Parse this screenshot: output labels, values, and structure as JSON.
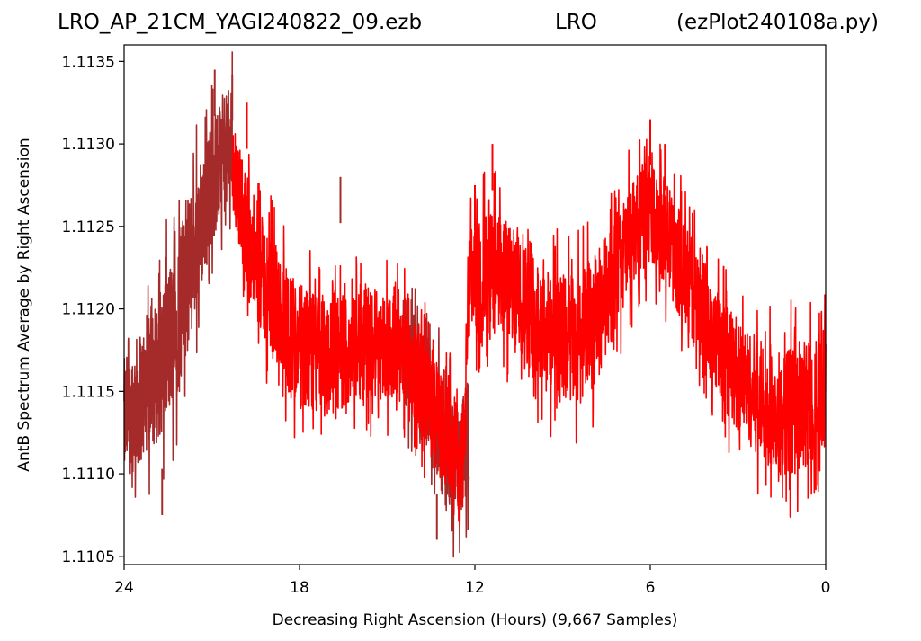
{
  "header": {
    "file_name": "LRO_AP_21CM_YAGI240822_09.ezb",
    "site": "LRO",
    "script": "(ezPlot240108a.py)"
  },
  "chart_data": {
    "type": "line",
    "xlabel": "Decreasing Right Ascension (Hours) (9,667 Samples)",
    "ylabel": "AntB Spectrum Average by Right Ascension",
    "xlim": [
      24,
      0
    ],
    "ylim": [
      1.11045,
      1.1136
    ],
    "x_ticks": [
      {
        "value": 24,
        "label": "24"
      },
      {
        "value": 18,
        "label": "18"
      },
      {
        "value": 12,
        "label": "12"
      },
      {
        "value": 6,
        "label": "6"
      },
      {
        "value": 0,
        "label": "0"
      }
    ],
    "y_ticks": [
      {
        "value": 1.1105,
        "label": "1.1105"
      },
      {
        "value": 1.111,
        "label": "1.1110"
      },
      {
        "value": 1.1115,
        "label": "1.1115"
      },
      {
        "value": 1.112,
        "label": "1.1120"
      },
      {
        "value": 1.1125,
        "label": "1.1125"
      },
      {
        "value": 1.113,
        "label": "1.1130"
      },
      {
        "value": 1.1135,
        "label": "1.1135"
      }
    ],
    "grid": false,
    "colors": {
      "dark_series": "#a52a2a",
      "bright_series": "#ff0000"
    },
    "series": [
      {
        "color": "#a52a2a",
        "envelope": {
          "x": [
            24.0,
            23.5,
            23.0,
            22.5,
            22.0,
            21.5,
            21.0,
            20.5,
            20.3
          ],
          "low": [
            1.11095,
            1.11105,
            1.11115,
            1.1113,
            1.1116,
            1.112,
            1.1124,
            1.1126,
            1.1127
          ],
          "high": [
            1.1117,
            1.11185,
            1.112,
            1.11225,
            1.11255,
            1.11285,
            1.11315,
            1.1133,
            1.11335
          ]
        }
      },
      {
        "color": "#a52a2a",
        "envelope": {
          "x": [
            14.5,
            14.0,
            13.5,
            13.0,
            12.5,
            12.2
          ],
          "low": [
            1.11145,
            1.1113,
            1.1111,
            1.1108,
            1.1107,
            1.1109
          ],
          "high": [
            1.11215,
            1.11195,
            1.11175,
            1.11155,
            1.1114,
            1.1116
          ]
        }
      },
      {
        "color": "#ff0000",
        "envelope": {
          "x": [
            20.3,
            20.0,
            19.5,
            19.0,
            18.5,
            18.0,
            17.5,
            17.0,
            16.5,
            16.0,
            15.5,
            15.0,
            14.5,
            14.0,
            13.5,
            13.0,
            12.6,
            12.4,
            12.2,
            12.0,
            11.5,
            11.0,
            10.5,
            10.0,
            9.5,
            9.0,
            8.5,
            8.0,
            7.5,
            7.0,
            6.5,
            6.0,
            5.5,
            5.0,
            4.5,
            4.0,
            3.5,
            3.0,
            2.5,
            2.0,
            1.5,
            1.0,
            0.5,
            0.0
          ],
          "low": [
            1.1126,
            1.1123,
            1.11195,
            1.1117,
            1.1115,
            1.1114,
            1.11135,
            1.11135,
            1.1114,
            1.11145,
            1.11145,
            1.11145,
            1.11145,
            1.1113,
            1.1111,
            1.1109,
            1.1108,
            1.11075,
            1.1117,
            1.11185,
            1.11185,
            1.1118,
            1.11175,
            1.1116,
            1.1115,
            1.1114,
            1.1114,
            1.1115,
            1.1117,
            1.11195,
            1.11215,
            1.1123,
            1.11215,
            1.11195,
            1.11175,
            1.1116,
            1.1114,
            1.11125,
            1.11115,
            1.11105,
            1.111,
            1.111,
            1.11105,
            1.1111
          ],
          "high": [
            1.1132,
            1.11295,
            1.11265,
            1.11245,
            1.1123,
            1.11215,
            1.1121,
            1.1121,
            1.1121,
            1.11215,
            1.11215,
            1.1121,
            1.11205,
            1.11195,
            1.11175,
            1.11155,
            1.11145,
            1.1114,
            1.11245,
            1.11255,
            1.1126,
            1.11255,
            1.11245,
            1.11235,
            1.11225,
            1.1122,
            1.1122,
            1.1123,
            1.11245,
            1.11265,
            1.1128,
            1.1129,
            1.1128,
            1.1126,
            1.1124,
            1.1122,
            1.11205,
            1.11195,
            1.11185,
            1.1118,
            1.11175,
            1.1118,
            1.11185,
            1.1119
          ]
        }
      }
    ],
    "peaks": [
      {
        "x": 20.9,
        "y": 1.11345,
        "color": "#a52a2a"
      },
      {
        "x": 20.3,
        "y": 1.11342,
        "color": "#a52a2a"
      },
      {
        "x": 19.8,
        "y": 1.11325,
        "color": "#ff0000"
      },
      {
        "x": 16.6,
        "y": 1.1128,
        "color": "#a52a2a"
      },
      {
        "x": 13.3,
        "y": 1.1106,
        "color": "#a52a2a"
      },
      {
        "x": 12.8,
        "y": 1.11065,
        "color": "#a52a2a"
      },
      {
        "x": 12.0,
        "y": 1.11275,
        "color": "#ff0000"
      },
      {
        "x": 11.4,
        "y": 1.113,
        "color": "#ff0000"
      },
      {
        "x": 6.0,
        "y": 1.11315,
        "color": "#ff0000"
      },
      {
        "x": 5.5,
        "y": 1.113,
        "color": "#ff0000"
      },
      {
        "x": 22.7,
        "y": 1.11075,
        "color": "#a52a2a"
      },
      {
        "x": 0.6,
        "y": 1.11085,
        "color": "#ff0000"
      }
    ]
  }
}
